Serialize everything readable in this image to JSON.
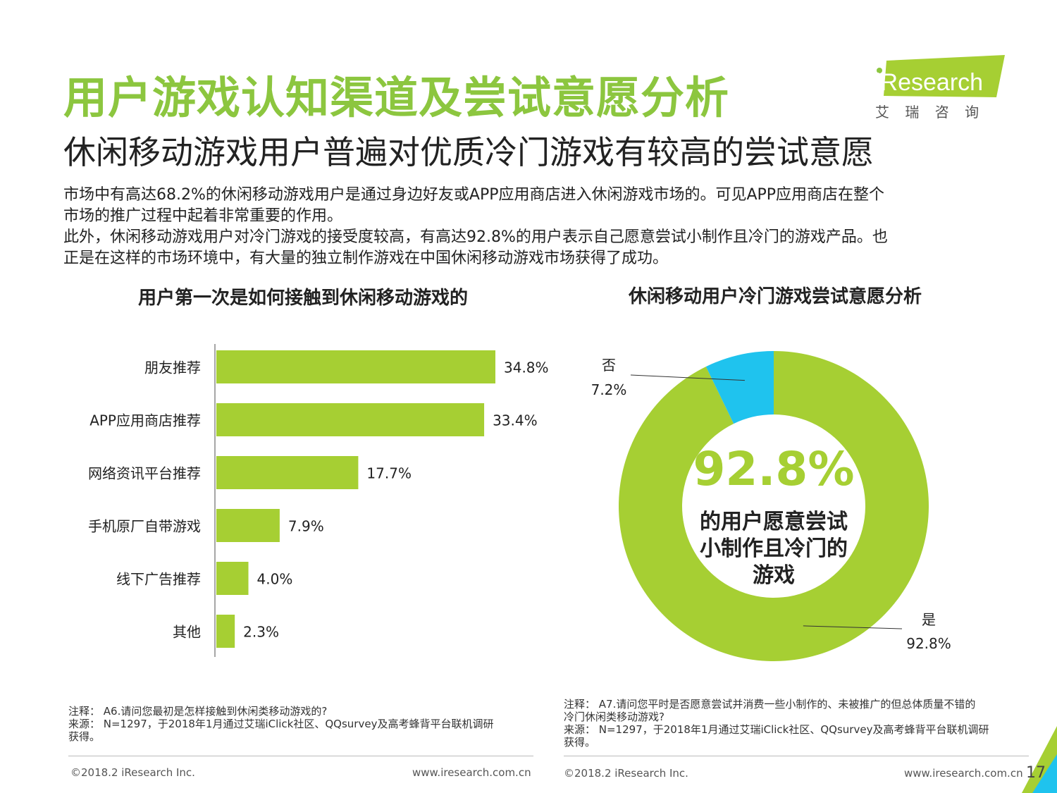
{
  "header": {
    "title": "用户游戏认知渠道及尝试意愿分析",
    "subtitle": "休闲移动游戏用户普遍对优质冷门游戏有较高的尝试意愿"
  },
  "logo": {
    "brand": "iResearch",
    "chinese": "艾  瑞  咨  询"
  },
  "body": {
    "para1_line1": "市场中有高达68.2%的休闲移动游戏用户是通过身边好友或APP应用商店进入休闲游戏市场的。可见APP应用商店在整个",
    "para1_line2": "市场的推广过程中起着非常重要的作用。",
    "para2_line1": "此外，休闲移动游戏用户对冷门游戏的接受度较高，有高达92.8%的用户表示自己愿意尝试小制作且冷门的游戏产品。也",
    "para2_line2": "正是在这样的市场环境中，有大量的独立制作游戏在中国休闲移动游戏市场获得了成功。"
  },
  "colors": {
    "accent": "#8cc63f",
    "bar": "#a6cf33",
    "pie_yes": "#a6cf33",
    "pie_no": "#1fc3ee"
  },
  "chart_data": [
    {
      "type": "bar",
      "orientation": "horizontal",
      "title": "用户第一次是如何接触到休闲移动游戏的",
      "categories": [
        "朋友推荐",
        "APP应用商店推荐",
        "网络资讯平台推荐",
        "手机原厂自带游戏",
        "线下广告推荐",
        "其他"
      ],
      "values": [
        34.8,
        33.4,
        17.7,
        7.9,
        4.0,
        2.3
      ],
      "data_labels": [
        "34.8%",
        "33.4%",
        "17.7%",
        "7.9%",
        "4.0%",
        "2.3%"
      ],
      "unit": "%",
      "xlim": [
        0,
        40
      ]
    },
    {
      "type": "pie",
      "style": "donut",
      "title": "休闲移动用户冷门游戏尝试意愿分析",
      "slices": [
        {
          "label": "是",
          "value": 92.8,
          "value_label": "92.8%",
          "color": "#a6cf33"
        },
        {
          "label": "否",
          "value": 7.2,
          "value_label": "7.2%",
          "color": "#1fc3ee"
        }
      ],
      "center_value": "92.8%",
      "center_text": [
        "的用户愿意尝试",
        "小制作且冷门的",
        "游戏"
      ]
    }
  ],
  "notes": {
    "left": [
      "注释：  A6.请问您最初是怎样接触到休闲类移动游戏的?",
      "来源：  N=1297，于2018年1月通过艾瑞iClick社区、QQsurvey及高考蜂背平台联机调研",
      "获得。"
    ],
    "right": [
      "注释：  A7.请问您平时是否愿意尝试并消费一些小制作的、未被推广的但总体质量不错的",
      "冷门休闲类移动游戏?",
      "来源：  N=1297，于2018年1月通过艾瑞iClick社区、QQsurvey及高考蜂背平台联机调研",
      "获得。"
    ]
  },
  "footer": {
    "copyright_left": "©2018.2 iResearch Inc.",
    "url_left": "www.iresearch.com.cn",
    "copyright_right": "©2018.2 iResearch Inc.",
    "url_right": "www.iresearch.com.cn",
    "page_number": "17"
  }
}
